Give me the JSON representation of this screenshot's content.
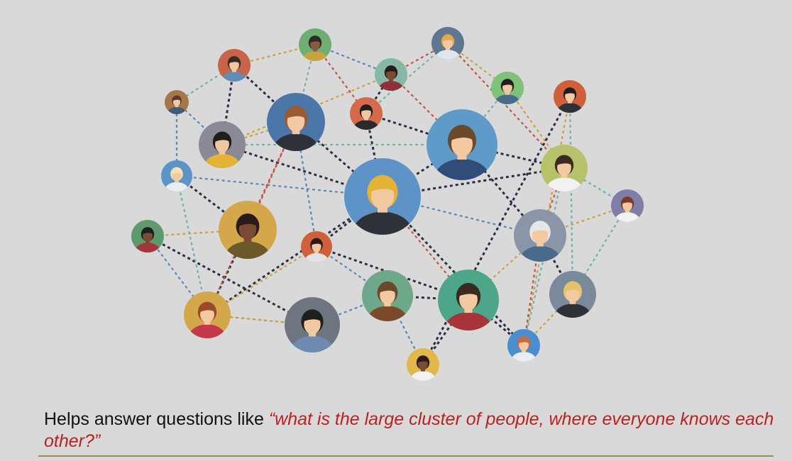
{
  "caption": {
    "lead": "Helps answer questions like ",
    "quote": "“what is the large cluster of people, where everyone knows each other?”"
  },
  "colors": {
    "background": "#d9d9d9",
    "quote": "#b8231f",
    "rule": "#a68a4b",
    "dash_colors": [
      "#2b2f45",
      "#6fb2b0",
      "#c9a43c",
      "#c0564a",
      "#5c86b8"
    ]
  },
  "people": [
    {
      "id": "p1",
      "bg": "#a7774a",
      "hair": "#5b3b2a",
      "skin": "#f2c9a0",
      "shirt": "#3f5a7a"
    },
    {
      "id": "p2",
      "bg": "#c7644a",
      "hair": "#3a2a22",
      "skin": "#f0c8a0",
      "shirt": "#5e8cb4"
    },
    {
      "id": "p3",
      "bg": "#6fae72",
      "hair": "#2c2a2a",
      "skin": "#8a5a3c",
      "shirt": "#c9a43c"
    },
    {
      "id": "p4",
      "bg": "#d46a4a",
      "hair": "#1f1f1f",
      "skin": "#f0c8a0",
      "shirt": "#2a2a2a"
    },
    {
      "id": "p5",
      "bg": "#86b8a6",
      "hair": "#2a1a1a",
      "skin": "#7a4a32",
      "shirt": "#8e2f3a"
    },
    {
      "id": "p6",
      "bg": "#5f7690",
      "hair": "#e3a94a",
      "skin": "#f2c9a0",
      "shirt": "#dfe6ee"
    },
    {
      "id": "p7",
      "bg": "#7ec27a",
      "hair": "#1f1f1f",
      "skin": "#f0c8a0",
      "shirt": "#4a6a8a"
    },
    {
      "id": "p8",
      "bg": "#4b76a8",
      "hair": "#9a5a32",
      "skin": "#f2c9a0",
      "shirt": "#2e3138"
    },
    {
      "id": "p9",
      "bg": "#8a8a96",
      "hair": "#1f1f1f",
      "skin": "#f0c8a0",
      "shirt": "#e3b336"
    },
    {
      "id": "p10",
      "bg": "#5e93c8",
      "hair": "#f2e2b6",
      "skin": "#f2c9a0",
      "shirt": "#e8eef4"
    },
    {
      "id": "p11",
      "bg": "#5e9bc8",
      "hair": "#6a4a2a",
      "skin": "#f2c9a0",
      "shirt": "#2f4d78"
    },
    {
      "id": "p12",
      "bg": "#d4a84a",
      "hair": "#2a1a1a",
      "skin": "#7a4a32",
      "shirt": "#6a5a2a"
    },
    {
      "id": "p13",
      "bg": "#5e93c8",
      "hair": "#e3b336",
      "skin": "#f2c9a0",
      "shirt": "#2e3138"
    },
    {
      "id": "p14",
      "bg": "#b8c26a",
      "hair": "#3a2a22",
      "skin": "#f2c9a0",
      "shirt": "#f2f2f2"
    },
    {
      "id": "p15",
      "bg": "#7e7ea8",
      "hair": "#7a3a2a",
      "skin": "#f2c9a0",
      "shirt": "#f2f2f2"
    },
    {
      "id": "p16",
      "bg": "#5e9a6e",
      "hair": "#1f1f1f",
      "skin": "#7a4a32",
      "shirt": "#a6343a"
    },
    {
      "id": "p17",
      "bg": "#d4a84a",
      "hair": "#9a4a2a",
      "skin": "#f2c9a0",
      "shirt": "#c23a4a"
    },
    {
      "id": "p18",
      "bg": "#d0603c",
      "hair": "#2a1a1a",
      "skin": "#f2c9a0",
      "shirt": "#e3e3e3"
    },
    {
      "id": "p19",
      "bg": "#8a96a8",
      "hair": "#e6e6e6",
      "skin": "#f2c9a0",
      "shirt": "#4a6a8a"
    },
    {
      "id": "p20",
      "bg": "#7a8a9a",
      "hair": "#e3c36a",
      "skin": "#f2c9a0",
      "shirt": "#2e3138"
    },
    {
      "id": "p21",
      "bg": "#6e7480",
      "hair": "#1f1f1f",
      "skin": "#f2c9a0",
      "shirt": "#6e8ab0"
    },
    {
      "id": "p22",
      "bg": "#6ea88a",
      "hair": "#6a4a2a",
      "skin": "#f2c9a0",
      "shirt": "#7a4a2a"
    },
    {
      "id": "p23",
      "bg": "#4ea68a",
      "hair": "#3a2a22",
      "skin": "#f2c9a0",
      "shirt": "#a6343a"
    },
    {
      "id": "p24",
      "bg": "#4b8ed0",
      "hair": "#c96a3a",
      "skin": "#f2c9a0",
      "shirt": "#e8eef4"
    },
    {
      "id": "p25",
      "bg": "#e3b84a",
      "hair": "#2a1a1a",
      "skin": "#7a4a32",
      "shirt": "#f2f2f2"
    },
    {
      "id": "p26",
      "bg": "#d0603c",
      "hair": "#1f1f1f",
      "skin": "#f2c9a0",
      "shirt": "#2e3138"
    },
    {
      "id": "p27",
      "bg": "#c8623c",
      "hair": "#6a4a2a",
      "skin": "#f2c9a0",
      "shirt": "#2e3138"
    }
  ],
  "links": [
    [
      "p27",
      "p1"
    ],
    [
      "p1",
      "p2"
    ],
    [
      "p2",
      "p3"
    ],
    [
      "p3",
      "p4"
    ],
    [
      "p3",
      "p5"
    ],
    [
      "p4",
      "p5"
    ],
    [
      "p4",
      "p6"
    ],
    [
      "p6",
      "p7"
    ],
    [
      "p5",
      "p6"
    ],
    [
      "p1",
      "p10"
    ],
    [
      "p2",
      "p9"
    ],
    [
      "p3",
      "p8"
    ],
    [
      "p5",
      "p9"
    ],
    [
      "p5",
      "p11"
    ],
    [
      "p4",
      "p11"
    ],
    [
      "p4",
      "p13"
    ],
    [
      "p9",
      "p13"
    ],
    [
      "p8",
      "p9"
    ],
    [
      "p8",
      "p13"
    ],
    [
      "p10",
      "p13"
    ],
    [
      "p11",
      "p13"
    ],
    [
      "p7",
      "p11"
    ],
    [
      "p7",
      "p14"
    ],
    [
      "p6",
      "p14"
    ],
    [
      "p11",
      "p14"
    ],
    [
      "p13",
      "p14"
    ],
    [
      "p14",
      "p15"
    ],
    [
      "p15",
      "p19"
    ],
    [
      "p14",
      "p19"
    ],
    [
      "p13",
      "p19"
    ],
    [
      "p19",
      "p20"
    ],
    [
      "p15",
      "p20"
    ],
    [
      "p13",
      "p17"
    ],
    [
      "p13",
      "p23"
    ],
    [
      "p13",
      "p24"
    ],
    [
      "p13",
      "p18"
    ],
    [
      "p10",
      "p12"
    ],
    [
      "p12",
      "p16"
    ],
    [
      "p12",
      "p17"
    ],
    [
      "p16",
      "p17"
    ],
    [
      "p16",
      "p21"
    ],
    [
      "p17",
      "p21"
    ],
    [
      "p17",
      "p18"
    ],
    [
      "p12",
      "p8"
    ],
    [
      "p21",
      "p22"
    ],
    [
      "p22",
      "p23"
    ],
    [
      "p23",
      "p24"
    ],
    [
      "p24",
      "p26"
    ],
    [
      "p23",
      "p25"
    ],
    [
      "p22",
      "p25"
    ],
    [
      "p25",
      "p26"
    ],
    [
      "p26",
      "p20"
    ],
    [
      "p24",
      "p20"
    ],
    [
      "p19",
      "p24"
    ],
    [
      "p18",
      "p22"
    ],
    [
      "p18",
      "p23"
    ],
    [
      "p10",
      "p17"
    ],
    [
      "p27",
      "p10"
    ],
    [
      "p27",
      "p12"
    ],
    [
      "p8",
      "p18"
    ],
    [
      "p11",
      "p19"
    ],
    [
      "p9",
      "p11"
    ],
    [
      "p21",
      "p17"
    ],
    [
      "p8",
      "p17"
    ],
    [
      "p1",
      "p9"
    ],
    [
      "p2",
      "p8"
    ],
    [
      "p14",
      "p24"
    ],
    [
      "p23",
      "p19"
    ]
  ]
}
